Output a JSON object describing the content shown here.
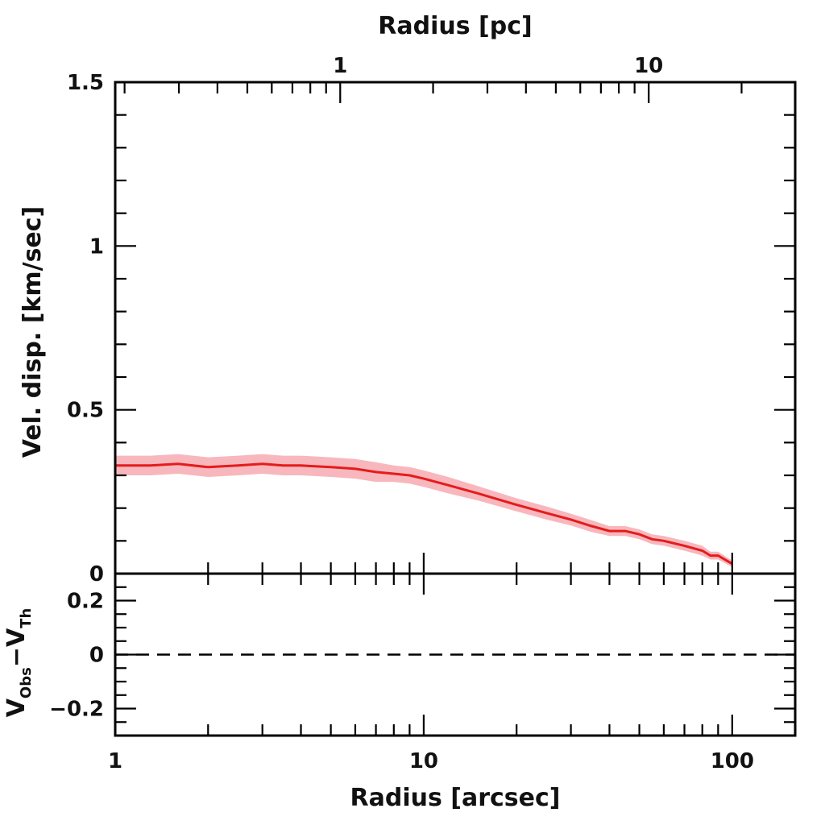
{
  "chart_data": [
    {
      "type": "line",
      "panel": "main",
      "xlabel_top": "Radius [pc]",
      "ylabel": "Vel. disp. [km/sec]",
      "xscale": "log",
      "xlim": [
        1,
        160
      ],
      "ylim": [
        0,
        1.5
      ],
      "yticks": [
        0,
        0.5,
        1,
        1.5
      ],
      "ytick_labels": [
        "0",
        "0.5",
        "1",
        "1.5"
      ],
      "top_axis": {
        "label": "Radius [pc]",
        "ticks_pc": [
          1,
          10
        ],
        "tick_labels": [
          "1",
          "10"
        ],
        "pc_per_arcsec": 0.1865
      },
      "series": [
        {
          "name": "velocity dispersion",
          "color": "#e41c1c",
          "band_color": "#f7b7bd",
          "x": [
            1,
            1.3,
            1.6,
            2,
            2.5,
            3,
            3.5,
            4,
            5,
            6,
            7,
            8,
            9,
            10,
            12,
            15,
            20,
            25,
            30,
            35,
            40,
            45,
            50,
            55,
            60,
            70,
            80,
            85,
            90,
            100
          ],
          "y": [
            0.33,
            0.33,
            0.335,
            0.325,
            0.33,
            0.335,
            0.33,
            0.33,
            0.325,
            0.32,
            0.31,
            0.305,
            0.3,
            0.29,
            0.27,
            0.245,
            0.21,
            0.185,
            0.165,
            0.145,
            0.13,
            0.13,
            0.12,
            0.105,
            0.1,
            0.085,
            0.07,
            0.055,
            0.055,
            0.03
          ],
          "err": [
            0.03,
            0.03,
            0.03,
            0.03,
            0.03,
            0.03,
            0.03,
            0.03,
            0.03,
            0.03,
            0.03,
            0.025,
            0.025,
            0.025,
            0.025,
            0.022,
            0.02,
            0.02,
            0.018,
            0.018,
            0.015,
            0.015,
            0.015,
            0.015,
            0.015,
            0.015,
            0.015,
            0.012,
            0.012,
            0.01
          ]
        }
      ]
    },
    {
      "type": "line",
      "panel": "residual",
      "xlabel": "Radius [arcsec]",
      "ylabel_main": "V",
      "ylabel_sub1": "Obs",
      "ylabel_mid": "−V",
      "ylabel_sub2": "Th",
      "xscale": "log",
      "xlim": [
        1,
        160
      ],
      "xticks": [
        1,
        10,
        100
      ],
      "xtick_labels": [
        "1",
        "10",
        "100"
      ],
      "ylim": [
        -0.3,
        0.3
      ],
      "yticks": [
        -0.2,
        0,
        0.2
      ],
      "ytick_labels": [
        "−0.2",
        "0",
        "0.2"
      ],
      "reference_line": {
        "y": 0,
        "style": "dashed",
        "color": "#000000"
      }
    }
  ]
}
